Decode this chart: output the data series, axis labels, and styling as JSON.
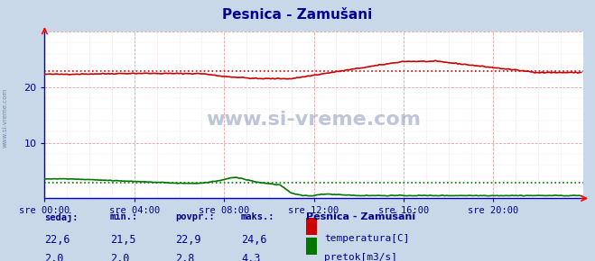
{
  "title": "Pesnica - Zamušani",
  "title_color": "#000099",
  "fig_bg_color": "#c8d8e8",
  "plot_bg_color": "#ffffff",
  "x_labels": [
    "sre 00:00",
    "sre 04:00",
    "sre 08:00",
    "sre 12:00",
    "sre 16:00",
    "sre 20:00"
  ],
  "x_ticks": [
    0,
    48,
    96,
    144,
    192,
    240
  ],
  "x_max": 288,
  "y_min": 0,
  "y_max": 30,
  "y_ticks": [
    10,
    20
  ],
  "temp_color": "#cc0000",
  "flow_color": "#007700",
  "temp_avg": 22.9,
  "temp_min": 21.5,
  "temp_max": 24.6,
  "flow_avg": 2.8,
  "flow_min": 2.0,
  "flow_max": 4.3,
  "temp_sedaj": 22.6,
  "flow_sedaj": 2.0,
  "watermark": "www.si-vreme.com",
  "axis_color": "#0000cc",
  "tick_color": "#000088",
  "stat_label_color": "#000088",
  "legend_title": "Pesnica - Zamušani"
}
